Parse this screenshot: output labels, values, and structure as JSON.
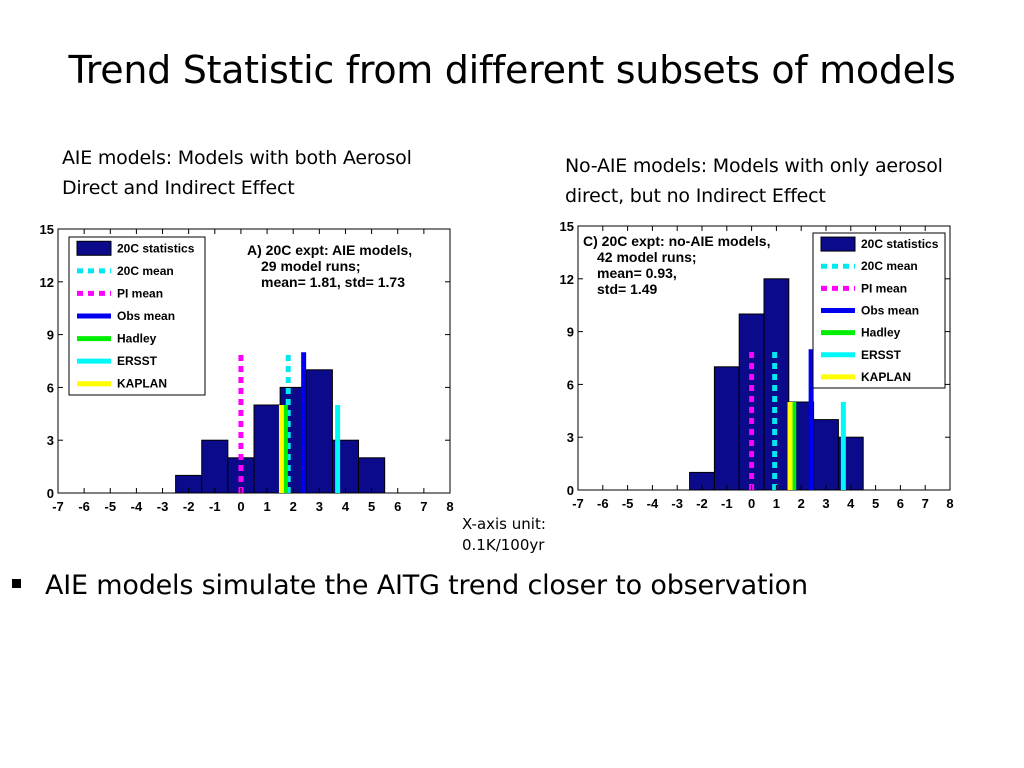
{
  "slide": {
    "title": "Trend Statistic from different subsets of models",
    "caption_left": [
      "AIE models: Models with both Aerosol",
      "Direct and Indirect Effect"
    ],
    "caption_right": [
      "No-AIE models: Models with only aerosol",
      "direct, but no Indirect Effect"
    ],
    "x_unit": [
      "X-axis unit:",
      "0.1K/100yr"
    ],
    "bullet": "AIE models simulate the AITG trend closer to observation"
  },
  "colors": {
    "bars": "#0a0a8a",
    "20C mean": "#00e8f0",
    "PI mean": "#ff00ff",
    "Obs mean": "#0000ee",
    "Hadley": "#00ee00",
    "ERSST": "#00f8f8",
    "KAPLAN": "#ffff00"
  },
  "chart_data": [
    {
      "type": "bar",
      "panel": "left",
      "xlim": [
        -7,
        8
      ],
      "ylim": [
        0,
        15
      ],
      "xticks": [
        "-7",
        "-6",
        "-5",
        "-4",
        "-3",
        "-2",
        "-1",
        "0",
        "1",
        "2",
        "3",
        "4",
        "5",
        "6",
        "7",
        "8"
      ],
      "yticks": [
        "0",
        "3",
        "6",
        "9",
        "12",
        "15"
      ],
      "bins": [
        {
          "x0": -2.5,
          "x1": -1.5,
          "value": 1
        },
        {
          "x0": -1.5,
          "x1": -0.5,
          "value": 3
        },
        {
          "x0": -0.5,
          "x1": 0.5,
          "value": 2
        },
        {
          "x0": 0.5,
          "x1": 1.5,
          "value": 5
        },
        {
          "x0": 1.5,
          "x1": 2.5,
          "value": 6
        },
        {
          "x0": 2.5,
          "x1": 3.5,
          "value": 7
        },
        {
          "x0": 3.5,
          "x1": 4.5,
          "value": 3
        },
        {
          "x0": 4.5,
          "x1": 5.5,
          "value": 2
        }
      ],
      "lines": [
        {
          "series": "PI mean",
          "x": 0.0,
          "height": 8,
          "dashed": true
        },
        {
          "series": "20C mean",
          "x": 1.81,
          "height": 8,
          "dashed": true
        },
        {
          "series": "Obs mean",
          "x": 2.4,
          "height": 8,
          "dashed": false
        },
        {
          "series": "Hadley",
          "x": 1.7,
          "height": 5,
          "dashed": false
        },
        {
          "series": "ERSST",
          "x": 3.7,
          "height": 5,
          "dashed": false
        },
        {
          "series": "KAPLAN",
          "x": 1.55,
          "height": 5,
          "dashed": false
        }
      ],
      "legend": {
        "placement": "top-left",
        "entries": [
          "20C statistics",
          "20C mean",
          "PI mean",
          "Obs mean",
          "Hadley",
          "ERSST",
          "KAPLAN"
        ]
      },
      "annotation": {
        "placement": "top-right",
        "lines": [
          "A) 20C expt: AIE models,",
          "29 model runs;",
          "mean= 1.81, std= 1.73"
        ]
      }
    },
    {
      "type": "bar",
      "panel": "right",
      "xlim": [
        -7,
        8
      ],
      "ylim": [
        0,
        15
      ],
      "xticks": [
        "-7",
        "-6",
        "-5",
        "-4",
        "-3",
        "-2",
        "-1",
        "0",
        "1",
        "2",
        "3",
        "4",
        "5",
        "6",
        "7",
        "8"
      ],
      "yticks": [
        "0",
        "3",
        "6",
        "9",
        "12",
        "15"
      ],
      "bins": [
        {
          "x0": -2.5,
          "x1": -1.5,
          "value": 1
        },
        {
          "x0": -1.5,
          "x1": -0.5,
          "value": 7
        },
        {
          "x0": -0.5,
          "x1": 0.5,
          "value": 10
        },
        {
          "x0": 0.5,
          "x1": 1.5,
          "value": 12
        },
        {
          "x0": 1.5,
          "x1": 2.5,
          "value": 5
        },
        {
          "x0": 2.5,
          "x1": 3.5,
          "value": 4
        },
        {
          "x0": 3.5,
          "x1": 4.5,
          "value": 3
        }
      ],
      "lines": [
        {
          "series": "PI mean",
          "x": 0.0,
          "height": 8,
          "dashed": true
        },
        {
          "series": "20C mean",
          "x": 0.93,
          "height": 8,
          "dashed": true
        },
        {
          "series": "Obs mean",
          "x": 2.4,
          "height": 8,
          "dashed": false
        },
        {
          "series": "Hadley",
          "x": 1.7,
          "height": 5,
          "dashed": false
        },
        {
          "series": "ERSST",
          "x": 3.7,
          "height": 5,
          "dashed": false
        },
        {
          "series": "KAPLAN",
          "x": 1.55,
          "height": 5,
          "dashed": false
        }
      ],
      "legend": {
        "placement": "top-right",
        "entries": [
          "20C statistics",
          "20C mean",
          "PI mean",
          "Obs mean",
          "Hadley",
          "ERSST",
          "KAPLAN"
        ]
      },
      "annotation": {
        "placement": "top-left",
        "lines": [
          "C) 20C expt: no-AIE models,",
          "42 model runs;",
          "mean= 0.93,",
          "std= 1.49"
        ]
      }
    }
  ]
}
